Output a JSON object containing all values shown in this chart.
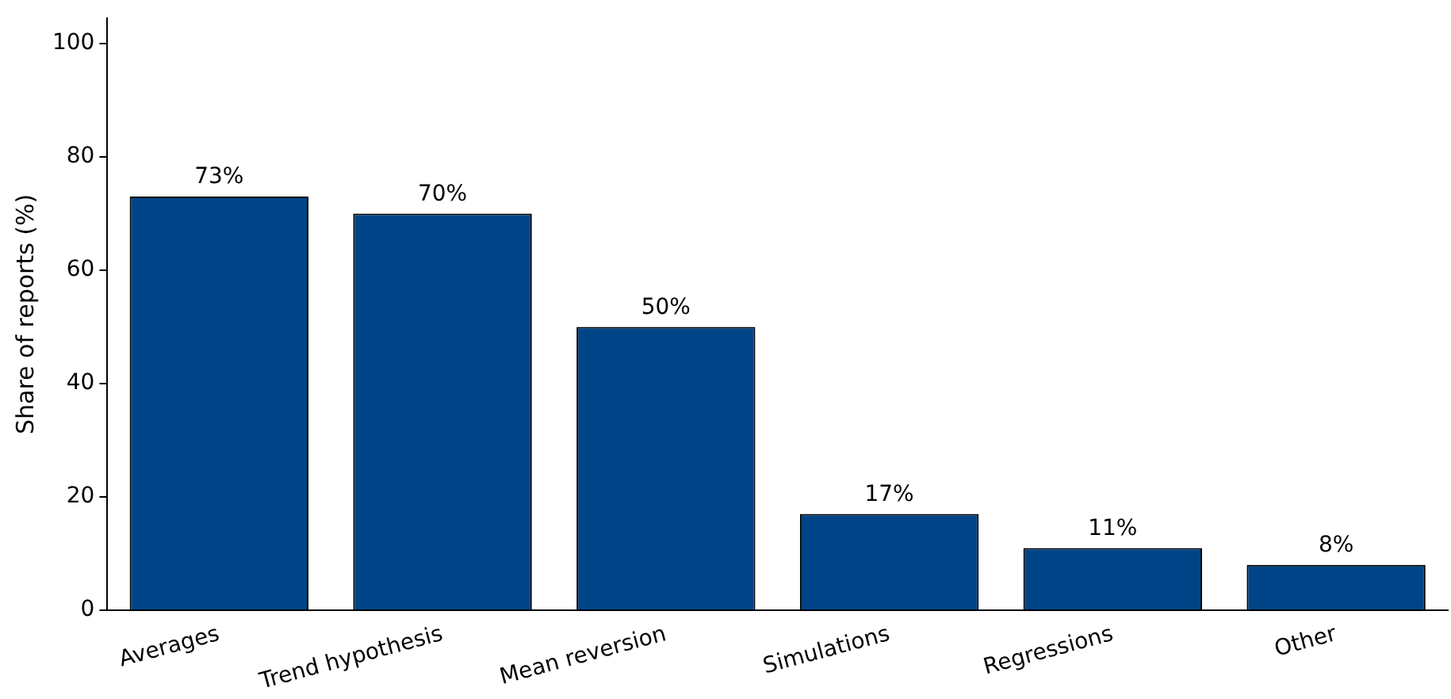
{
  "chart_data": {
    "type": "bar",
    "ylabel": "Share of reports (%)",
    "categories": [
      "Averages",
      "Trend hypothesis",
      "Mean reversion",
      "Simulations",
      "Regressions",
      "Other"
    ],
    "values": [
      73,
      70,
      50,
      17,
      11,
      8
    ],
    "value_labels": [
      "73%",
      "70%",
      "50%",
      "17%",
      "11%",
      "8%"
    ],
    "color": "#004488",
    "ylim": [
      0,
      104.5
    ],
    "yticks": [
      0,
      20,
      40,
      60,
      80,
      100
    ],
    "grid": false,
    "legend": false
  }
}
